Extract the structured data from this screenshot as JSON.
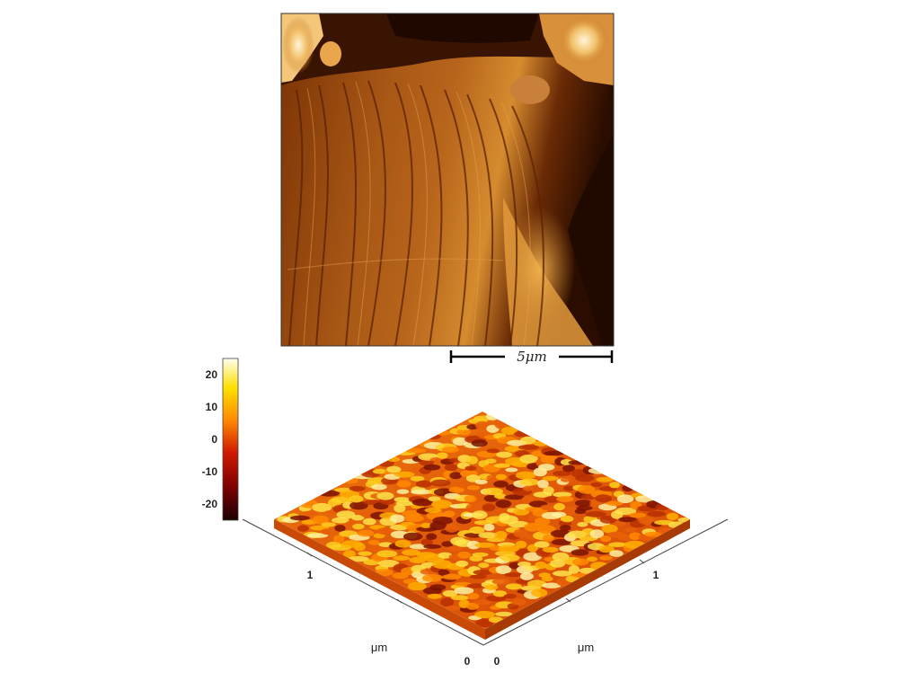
{
  "top_panel": {
    "scale_bar_label": "5μm"
  },
  "colorbar": {
    "ticks": [
      "20",
      "10",
      "0",
      "-10",
      "-20"
    ],
    "tick_values": [
      20,
      10,
      0,
      -10,
      -20
    ],
    "range": [
      -25,
      25
    ],
    "colors": [
      "#1a0000",
      "#7a0000",
      "#d01a00",
      "#ff8a00",
      "#ffe000",
      "#fffff0"
    ]
  },
  "surface_panel": {
    "left_axis": {
      "ticks": [
        "1",
        "0"
      ],
      "unit": "μm"
    },
    "right_axis": {
      "ticks": [
        "0",
        "1"
      ],
      "unit": "μm"
    }
  },
  "palette": {
    "afm_dark": "#2a0d00",
    "afm_mid": "#9a4a10",
    "afm_light": "#e8a040",
    "afm_highlight": "#fff3c8"
  }
}
